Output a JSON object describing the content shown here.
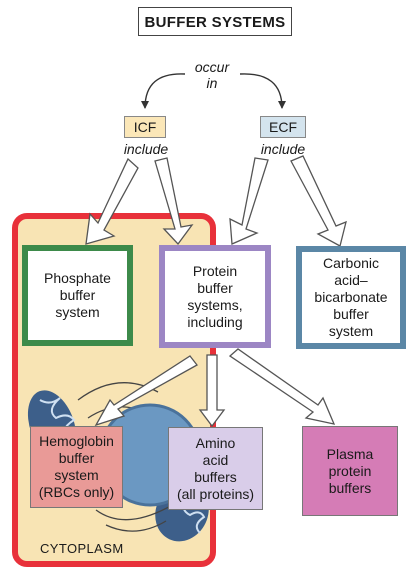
{
  "title": "BUFFER SYSTEMS",
  "occur_in": [
    "occur",
    "in"
  ],
  "icf": {
    "label": "ICF",
    "include": "include"
  },
  "ecf": {
    "label": "ECF",
    "include": "include"
  },
  "boxes": {
    "phosphate": [
      "Phosphate",
      "buffer",
      "system"
    ],
    "protein": [
      "Protein",
      "buffer",
      "systems,",
      "including"
    ],
    "carbonic": [
      "Carbonic",
      "acid–",
      "bicarbonate",
      "buffer",
      "system"
    ],
    "hemoglobin": [
      "Hemoglobin",
      "buffer",
      "system",
      "(RBCs only)"
    ],
    "amino": [
      "Amino",
      "acid",
      "buffers",
      "(all proteins)"
    ],
    "plasma": [
      "Plasma",
      "protein",
      "buffers"
    ]
  },
  "cytoplasm_label": "CYTOPLASM",
  "colors": {
    "cell_border": "#e8313a",
    "cytoplasm": "#f8e4b4",
    "icf_fill": "#fbe7b8",
    "ecf_fill": "#d4e4ee",
    "phosphate_border": "#3d8a4a",
    "protein_border": "#9c86c4",
    "carbonic_border": "#5b87a6",
    "hemoglobin_fill": "#e99a97",
    "amino_fill": "#d9cde9",
    "plasma_fill": "#d57cb6",
    "nucleus": "#6b98c2"
  }
}
